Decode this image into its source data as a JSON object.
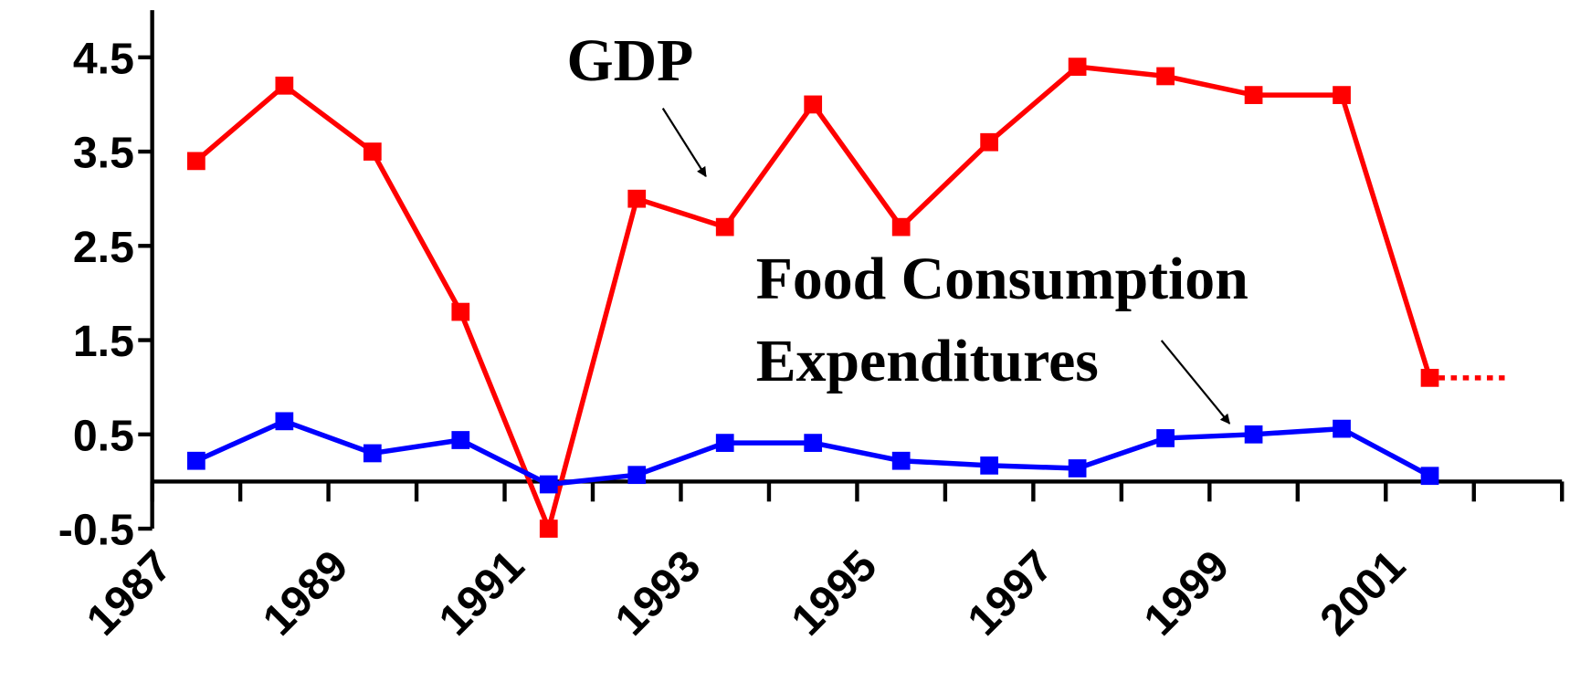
{
  "chart_data": {
    "type": "line",
    "categories": [
      "1987",
      null,
      "1989",
      null,
      "1991",
      null,
      "1993",
      null,
      "1995",
      null,
      "1997",
      null,
      "1999",
      null,
      "2001"
    ],
    "series": [
      {
        "name": "GDP",
        "color": "#ff0000",
        "values": [
          3.4,
          4.2,
          3.5,
          1.8,
          -0.5,
          3.0,
          2.7,
          4.0,
          2.7,
          3.6,
          4.4,
          4.3,
          4.1,
          4.1,
          1.1
        ]
      },
      {
        "name": "Food Consumption Expenditures",
        "color": "#0000ff",
        "values": [
          0.22,
          0.64,
          0.3,
          0.44,
          -0.03,
          0.07,
          0.41,
          0.41,
          0.22,
          0.17,
          0.14,
          0.46,
          0.5,
          0.56,
          0.06
        ]
      }
    ],
    "ylim": [
      -0.5,
      5
    ],
    "yticks": [
      -0.5,
      0.5,
      1.5,
      2.5,
      3.5,
      4.5
    ],
    "grid": false
  }
}
